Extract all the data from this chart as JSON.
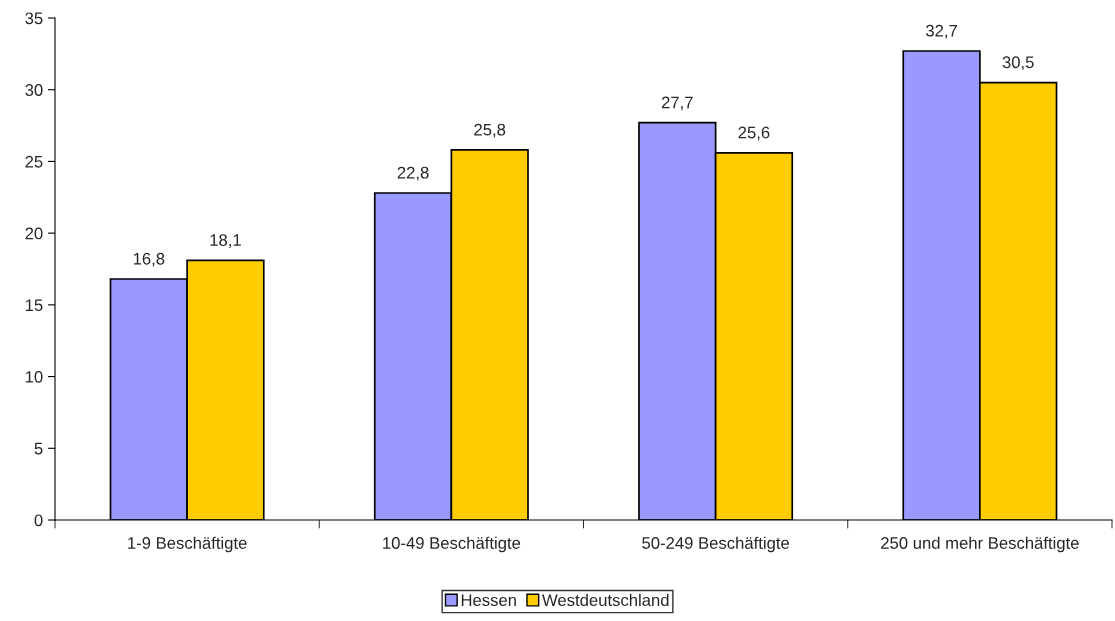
{
  "chart_data": {
    "type": "bar",
    "categories": [
      "1-9 Beschäftigte",
      "10-49 Beschäftigte",
      "50-249 Beschäftigte",
      "250 und mehr Beschäftigte"
    ],
    "series": [
      {
        "name": "Hessen",
        "color": "#9999ff",
        "values": [
          16.8,
          22.8,
          27.7,
          32.7
        ],
        "value_labels": [
          "16,8",
          "22,8",
          "27,7",
          "32,7"
        ]
      },
      {
        "name": "Westdeutschland",
        "color": "#ffcc00",
        "values": [
          18.1,
          25.8,
          25.6,
          30.5
        ],
        "value_labels": [
          "18,1",
          "25,8",
          "25,6",
          "30,5"
        ]
      }
    ],
    "ylim": [
      0,
      35
    ],
    "yticks": [
      0,
      5,
      10,
      15,
      20,
      25,
      30,
      35
    ],
    "grid": false,
    "legend": "bottom"
  }
}
